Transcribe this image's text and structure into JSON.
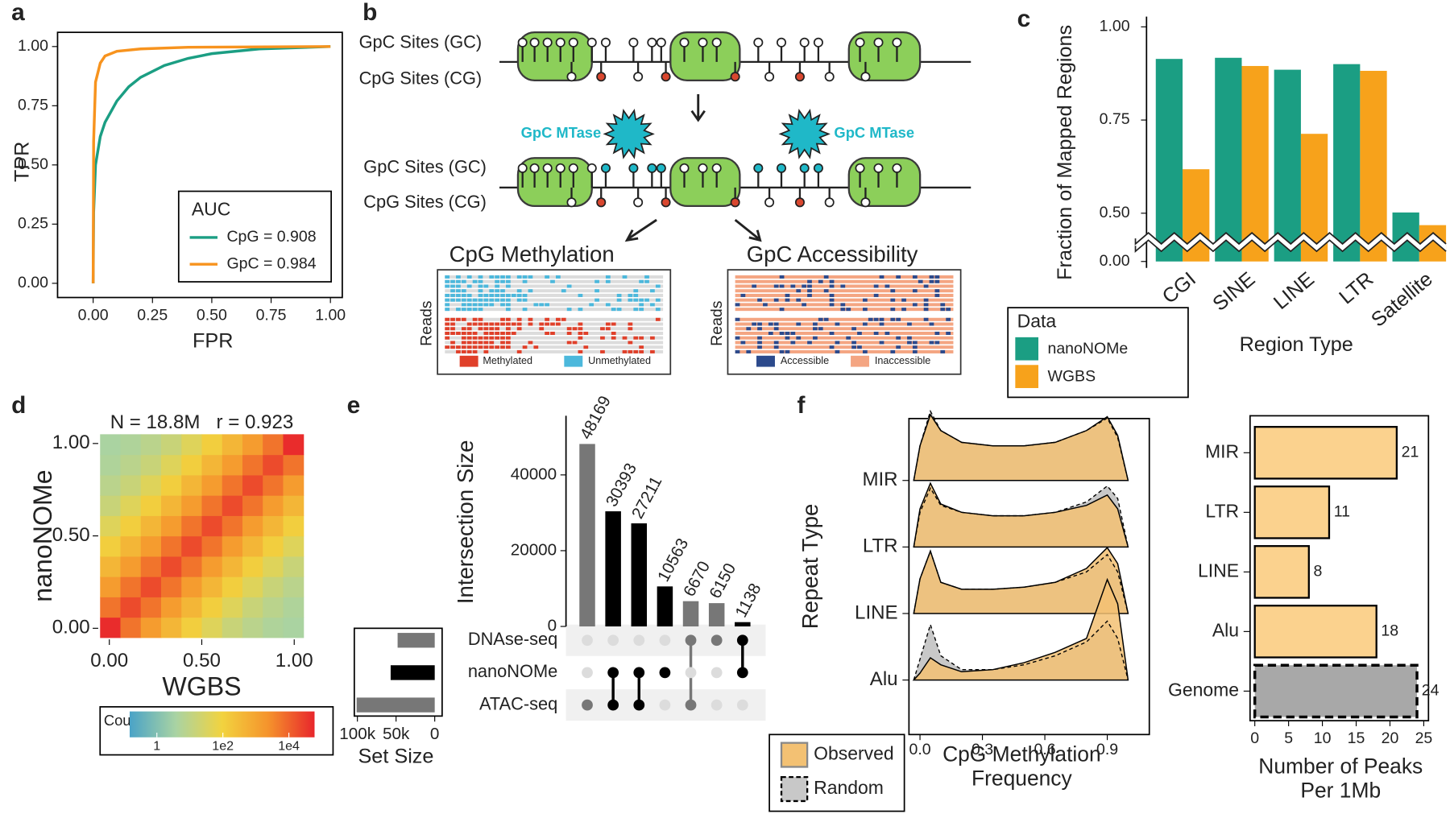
{
  "panel_labels": [
    "a",
    "b",
    "c",
    "d",
    "e",
    "f"
  ],
  "diagram": {
    "gpc_sites_before": "GpC Sites (GC)",
    "cpg_sites_before": "CpG Sites (CG)",
    "mtase_left": "GpC MTase",
    "mtase_right": "GpC MTase",
    "gpc_sites_after": "GpC Sites (GC)",
    "cpg_sites_after": "CpG Sites (CG)",
    "methylation_title": "CpG Methylation",
    "accessibility_title": "GpC Accessibility",
    "reads_left": "Reads",
    "reads_right": "Reads",
    "methylated": "Methylated",
    "unmethylated": "Unmethylated",
    "accessible": "Accessible",
    "inaccessible": "Inaccessible"
  },
  "chart_data": [
    {
      "type": "line",
      "xlabel": "FPR",
      "ylabel": "TPR",
      "xlim": [
        -0.15,
        1.05
      ],
      "ylim": [
        -0.06,
        1.06
      ],
      "xticks": [
        {
          "value": 0,
          "label": "0.00"
        },
        {
          "value": 0.25,
          "label": "0.25"
        },
        {
          "value": 0.5,
          "label": "0.50"
        },
        {
          "value": 0.75,
          "label": "0.75"
        },
        {
          "value": 1,
          "label": "1.00"
        }
      ],
      "yticks": [
        {
          "value": 0,
          "label": "0.00"
        },
        {
          "value": 0.25,
          "label": "0.25"
        },
        {
          "value": 0.5,
          "label": "0.50"
        },
        {
          "value": 0.75,
          "label": "0.75"
        },
        {
          "value": 1,
          "label": "1.00"
        }
      ],
      "legend_title": "AUC",
      "legend": "lower right",
      "series": [
        {
          "name": "CpG = 0.908",
          "color": "#1b9e83",
          "x": [
            0,
            0.002,
            0.01,
            0.03,
            0.05,
            0.1,
            0.15,
            0.2,
            0.3,
            0.4,
            0.5,
            0.7,
            1.0
          ],
          "values": [
            0,
            0.3,
            0.5,
            0.62,
            0.68,
            0.77,
            0.83,
            0.87,
            0.92,
            0.95,
            0.97,
            0.99,
            1.0
          ]
        },
        {
          "name": "GpC = 0.984",
          "color": "#f7931e",
          "x": [
            0,
            0.002,
            0.01,
            0.03,
            0.05,
            0.1,
            0.2,
            0.4,
            1.0
          ],
          "values": [
            0,
            0.6,
            0.85,
            0.93,
            0.96,
            0.98,
            0.99,
            0.997,
            1.0
          ]
        }
      ]
    },
    {
      "type": "bar",
      "xlabel": "Region Type",
      "ylabel": "Fraction of Mapped Regions",
      "categories": [
        "CGI",
        "SINE",
        "LINE",
        "LTR",
        "Satellite"
      ],
      "ylim": [
        0,
        1.02
      ],
      "y_break": [
        0.2,
        0.43
      ],
      "yticks": [
        {
          "value": 0,
          "label": "0.00"
        },
        {
          "value": 0.5,
          "label": "0.50"
        },
        {
          "value": 0.75,
          "label": "0.75"
        },
        {
          "value": 1,
          "label": "1.00"
        }
      ],
      "legend_title": "Data",
      "series": [
        {
          "name": "nanoNOMe",
          "color": "#1b9e83",
          "values": [
            0.914,
            0.917,
            0.885,
            0.9,
            0.502
          ]
        },
        {
          "name": "WGBS",
          "color": "#f7a21b",
          "values": [
            0.618,
            0.895,
            0.713,
            0.882,
            0.468
          ]
        }
      ]
    },
    {
      "type": "heatmap",
      "title": "N = 18.8M   r = 0.923",
      "xlabel": "WGBS",
      "ylabel": "nanoNOMe",
      "xlim": [
        -0.06,
        1.06
      ],
      "ylim": [
        -0.06,
        1.06
      ],
      "xticks": [
        {
          "value": 0,
          "label": "0.00"
        },
        {
          "value": 0.5,
          "label": "0.50"
        },
        {
          "value": 1,
          "label": "1.00"
        }
      ],
      "yticks": [
        {
          "value": 0,
          "label": "0.00"
        },
        {
          "value": 0.5,
          "label": "0.50"
        },
        {
          "value": 1,
          "label": "1.00"
        }
      ],
      "x_bins": [
        -0.05,
        0.06,
        0.17,
        0.28,
        0.39,
        0.5,
        0.61,
        0.72,
        0.83,
        0.94,
        1.05
      ],
      "y_bins": [
        -0.05,
        0.06,
        0.17,
        0.28,
        0.39,
        0.5,
        0.61,
        0.72,
        0.83,
        0.94,
        1.05
      ],
      "z": [
        [
          50000,
          6000,
          1500,
          400,
          120,
          40,
          15,
          8,
          5,
          4
        ],
        [
          6000,
          20000,
          6000,
          1500,
          400,
          120,
          40,
          15,
          8,
          5
        ],
        [
          1500,
          6000,
          20000,
          6000,
          1500,
          400,
          120,
          40,
          15,
          8
        ],
        [
          400,
          1500,
          6000,
          20000,
          6000,
          1500,
          400,
          120,
          40,
          15
        ],
        [
          120,
          400,
          1500,
          6000,
          20000,
          6000,
          1500,
          400,
          120,
          40
        ],
        [
          40,
          120,
          400,
          1500,
          6000,
          20000,
          6000,
          1500,
          400,
          120
        ],
        [
          15,
          40,
          120,
          400,
          1500,
          6000,
          20000,
          6000,
          1500,
          400
        ],
        [
          8,
          15,
          40,
          120,
          400,
          1500,
          6000,
          20000,
          6000,
          1500
        ],
        [
          5,
          8,
          15,
          40,
          120,
          400,
          1500,
          6000,
          20000,
          6000
        ],
        [
          4,
          5,
          8,
          15,
          40,
          120,
          400,
          1500,
          6000,
          50000
        ]
      ],
      "colorbar_title": "Count",
      "z_log": true,
      "zlim": [
        0.15,
        60000
      ],
      "zticks": [
        1,
        {
          "value": 100,
          "label": "1e2"
        },
        {
          "value": 10000,
          "label": "1e4"
        }
      ],
      "colormap": [
        "#4aa3c7",
        "#a9d3a3",
        "#f2d33f",
        "#f5932c",
        "#e8262c"
      ]
    },
    {
      "type": "upset",
      "ylabel": "Intersection Size",
      "values": [
        48169,
        30393,
        27211,
        10563,
        6670,
        6150,
        1138
      ],
      "colors": [
        "#777777",
        "#000000",
        "#000000",
        "#000000",
        "#777777",
        "#777777",
        "#000000"
      ],
      "ylim": [
        0,
        50000
      ],
      "yticks": [
        0,
        20000,
        40000
      ],
      "sets": [
        "DNAse-seq",
        "nanoNOMe",
        "ATAC-seq"
      ],
      "membership": [
        [
          false,
          false,
          true
        ],
        [
          false,
          true,
          true
        ],
        [
          false,
          true,
          true
        ],
        [
          false,
          true,
          false
        ],
        [
          true,
          false,
          true
        ],
        [
          true,
          false,
          false
        ],
        [
          true,
          true,
          false
        ]
      ],
      "set_sizes": [
        48000,
        57000,
        101000
      ],
      "set_colors": [
        "#777777",
        "#000000",
        "#777777"
      ],
      "set_xlim": [
        0,
        104000
      ],
      "set_xticks": [
        {
          "value": 100000,
          "label": "100k"
        },
        {
          "value": 50000,
          "label": "50k"
        },
        0
      ],
      "set_xlabel": "Set Size"
    },
    {
      "type": "ridgeline",
      "xlabel": "CpG Methylation Frequency",
      "ylabel": "Repeat Type",
      "categories": [
        "MIR",
        "LTR",
        "LINE",
        "Alu"
      ],
      "x": [
        -0.03,
        0,
        0.05,
        0.1,
        0.2,
        0.35,
        0.5,
        0.65,
        0.8,
        0.9,
        0.95,
        1.0
      ],
      "xlim": [
        -0.053,
        1.102
      ],
      "xticks": [
        {
          "value": 0,
          "label": "0.0"
        },
        0.3,
        0.6,
        0.9
      ],
      "series": [
        {
          "name": "Observed",
          "color": "#f3c173",
          "values": [
            [
              0,
              0.5,
              0.95,
              0.72,
              0.55,
              0.5,
              0.5,
              0.55,
              0.72,
              0.92,
              0.65,
              0
            ],
            [
              0,
              0.55,
              0.92,
              0.62,
              0.5,
              0.45,
              0.45,
              0.5,
              0.6,
              0.75,
              0.55,
              0
            ],
            [
              0,
              0.5,
              0.9,
              0.45,
              0.35,
              0.35,
              0.38,
              0.45,
              0.65,
              0.95,
              0.72,
              0
            ],
            [
              0,
              0.1,
              0.32,
              0.22,
              0.12,
              0.15,
              0.25,
              0.4,
              0.6,
              1.45,
              1.1,
              0
            ]
          ]
        },
        {
          "name": "Random",
          "color": "#c8c8c8",
          "values": [
            [
              0,
              0.5,
              1.0,
              0.72,
              0.55,
              0.5,
              0.5,
              0.55,
              0.72,
              0.9,
              0.62,
              0
            ],
            [
              0,
              0.5,
              0.85,
              0.6,
              0.5,
              0.45,
              0.45,
              0.5,
              0.65,
              0.88,
              0.7,
              0
            ],
            [
              0,
              0.5,
              0.9,
              0.45,
              0.35,
              0.35,
              0.38,
              0.45,
              0.6,
              0.85,
              0.6,
              0
            ],
            [
              0,
              0.3,
              0.8,
              0.35,
              0.15,
              0.15,
              0.22,
              0.35,
              0.55,
              0.85,
              0.6,
              0
            ]
          ]
        }
      ]
    },
    {
      "type": "barh",
      "xlabel": "Number of Peaks Per 1Mb",
      "categories": [
        "MIR",
        "LTR",
        "LINE",
        "Alu",
        "Genome"
      ],
      "values": [
        21,
        11,
        8,
        18,
        24
      ],
      "colors": [
        "#fbd28e",
        "#fbd28e",
        "#fbd28e",
        "#fbd28e",
        "#a8a8a8"
      ],
      "dashed": [
        false,
        false,
        false,
        false,
        true
      ],
      "xlim": [
        -0.7,
        25.7
      ],
      "xticks": [
        0,
        5,
        10,
        15,
        20,
        25
      ]
    }
  ]
}
